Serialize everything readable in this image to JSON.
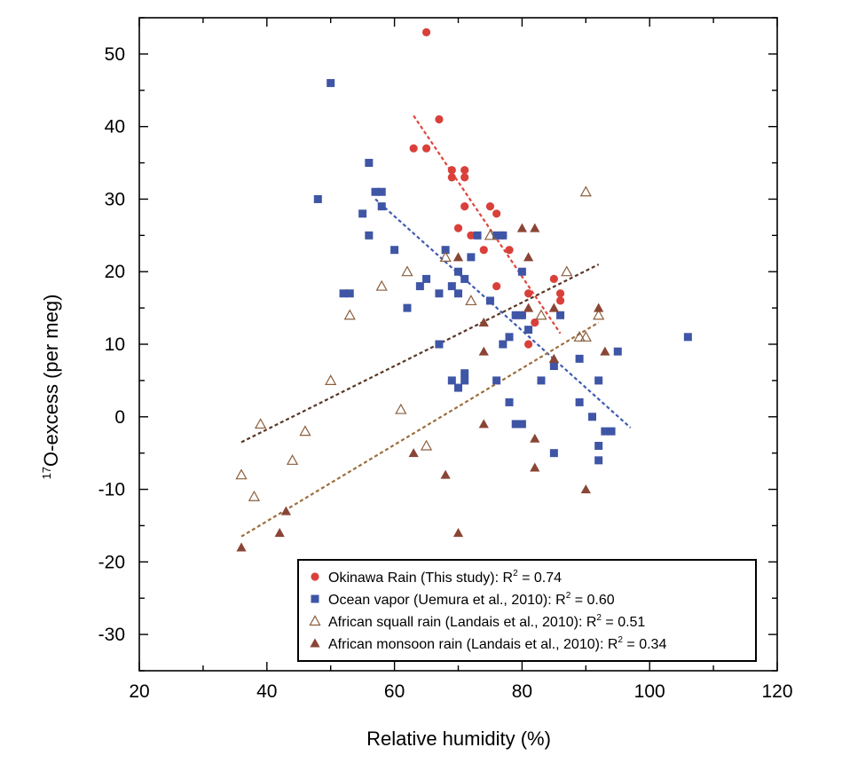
{
  "chart_data": {
    "type": "scatter",
    "xlabel": "Relative humidity (%)",
    "ylabel_sup": "17",
    "ylabel": "O-excess (per meg)",
    "xlim": [
      20,
      120
    ],
    "ylim": [
      -35,
      55
    ],
    "xticks": [
      20,
      40,
      60,
      80,
      100,
      120
    ],
    "yticks": [
      -30,
      -20,
      -10,
      0,
      10,
      20,
      30,
      40,
      50
    ],
    "legend_position": "bottom-right",
    "series": [
      {
        "name": "Okinawa Rain (This study):",
        "r2_label": "R",
        "r2_sup": "2",
        "r2_value": " = 0.74",
        "marker": "circle",
        "color": "#d9403a",
        "x": [
          65,
          63,
          65,
          67,
          69,
          69,
          71,
          71,
          71,
          70,
          72,
          74,
          75,
          76,
          77,
          76,
          78,
          79,
          80,
          81,
          81,
          82,
          85,
          86,
          86
        ],
        "y": [
          53,
          37,
          37,
          41,
          34,
          33,
          34,
          33,
          29,
          26,
          25,
          23,
          29,
          28,
          25,
          18,
          23,
          14,
          14,
          17,
          10,
          13,
          19,
          17,
          16
        ],
        "trend": {
          "x": [
            63,
            86
          ],
          "y": [
            41.5,
            11.5
          ],
          "color": "#e0443c"
        }
      },
      {
        "name": "Ocean vapor (Uemura et al., 2010):",
        "r2_label": "R",
        "r2_sup": "2",
        "r2_value": " = 0.60",
        "marker": "square",
        "color": "#3f55a6",
        "x": [
          50,
          48,
          56,
          57,
          58,
          58,
          55,
          56,
          52,
          53,
          60,
          62,
          64,
          65,
          67,
          68,
          67,
          69,
          70,
          71,
          70,
          72,
          73,
          75,
          76,
          77,
          79,
          80,
          81,
          80,
          78,
          77,
          76,
          69,
          70,
          71,
          71,
          78,
          79,
          80,
          83,
          85,
          85,
          86,
          89,
          89,
          91,
          92,
          92,
          93,
          94,
          95,
          92,
          106
        ],
        "y": [
          46,
          30,
          35,
          31,
          31,
          29,
          28,
          25,
          17,
          17,
          23,
          15,
          18,
          19,
          17,
          23,
          10,
          18,
          20,
          19,
          17,
          22,
          25,
          16,
          25,
          25,
          14,
          20,
          12,
          14,
          11,
          10,
          5,
          5,
          4,
          5,
          6,
          2,
          -1,
          -1,
          5,
          7,
          -5,
          14,
          2,
          8,
          0,
          5,
          -6,
          -2,
          -2,
          9,
          -4,
          11
        ],
        "trend": {
          "x": [
            57,
            97
          ],
          "y": [
            30,
            -1.5
          ],
          "color": "#3f5bb0"
        }
      },
      {
        "name": "African squall rain (Landais et al., 2010):",
        "r2_label": "R",
        "r2_sup": "2",
        "r2_value": " = 0.51",
        "marker": "triangle-open",
        "color": "#8b5e3c",
        "x": [
          36,
          38,
          39,
          44,
          46,
          50,
          53,
          58,
          62,
          61,
          65,
          68,
          72,
          75,
          83,
          87,
          89,
          90,
          90,
          92
        ],
        "y": [
          -8,
          -11,
          -1,
          -6,
          -2,
          5,
          14,
          18,
          20,
          1,
          -4,
          22,
          16,
          25,
          14,
          20,
          11,
          11,
          31,
          14
        ],
        "trend": {
          "x": [
            36,
            92
          ],
          "y": [
            -3.5,
            21
          ],
          "color": "#5a3626"
        }
      },
      {
        "name": "African monsoon rain (Landais et al., 2010):",
        "r2_label": "R",
        "r2_sup": "2",
        "r2_value": " = 0.34",
        "marker": "triangle-filled",
        "color": "#8a4535",
        "x": [
          36,
          42,
          43,
          63,
          68,
          70,
          70,
          74,
          74,
          74,
          80,
          81,
          82,
          81,
          82,
          82,
          85,
          85,
          90,
          92,
          93
        ],
        "y": [
          -18,
          -16,
          -13,
          -5,
          -8,
          -16,
          22,
          13,
          9,
          -1,
          26,
          22,
          26,
          15,
          -3,
          -7,
          15,
          8,
          -10,
          15,
          9
        ],
        "trend": {
          "x": [
            36,
            92
          ],
          "y": [
            -16.5,
            13
          ],
          "color": "#9c6e3c"
        }
      }
    ]
  }
}
